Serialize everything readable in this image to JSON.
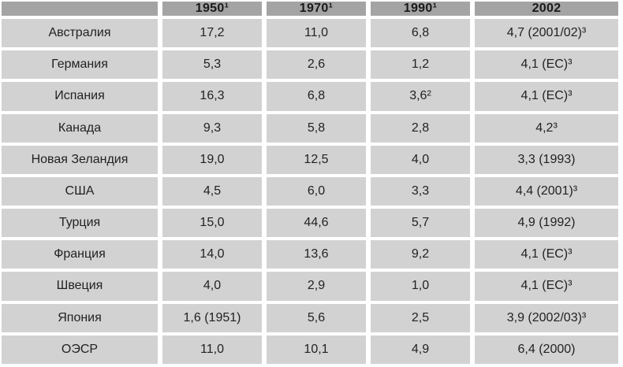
{
  "chart_data": {
    "type": "table",
    "title": "",
    "columns": [
      "",
      "1950¹",
      "1970¹",
      "1990¹",
      "2002"
    ],
    "rows": [
      {
        "label": "Австралия",
        "values": [
          "17,2",
          "11,0",
          "6,8",
          "4,7 (2001/02)³"
        ]
      },
      {
        "label": "Германия",
        "values": [
          "5,3",
          "2,6",
          "1,2",
          "4,1 (ЕС)³"
        ]
      },
      {
        "label": "Испания",
        "values": [
          "16,3",
          "6,8",
          "3,6²",
          "4,1 (ЕС)³"
        ]
      },
      {
        "label": "Канада",
        "values": [
          "9,3",
          "5,8",
          "2,8",
          "4,2³"
        ]
      },
      {
        "label": "Новая Зеландия",
        "values": [
          "19,0",
          "12,5",
          "4,0",
          "3,3 (1993)"
        ]
      },
      {
        "label": "США",
        "values": [
          "4,5",
          "6,0",
          "3,3",
          "4,4 (2001)³"
        ]
      },
      {
        "label": "Турция",
        "values": [
          "15,0",
          "44,6",
          "5,7",
          "4,9 (1992)"
        ]
      },
      {
        "label": "Франция",
        "values": [
          "14,0",
          "13,6",
          "9,2",
          "4,1 (ЕС)³"
        ]
      },
      {
        "label": "Швеция",
        "values": [
          "4,0",
          "2,9",
          "1,0",
          "4,1 (ЕС)³"
        ]
      },
      {
        "label": "Япония",
        "values": [
          "1,6 (1951)",
          "5,6",
          "2,5",
          "3,9 (2002/03)³"
        ]
      },
      {
        "label": "ОЭСР",
        "values": [
          "11,0",
          "10,1",
          "4,9",
          "6,4 (2000)"
        ]
      }
    ],
    "layout": {
      "grid": "white gutters between gray cells",
      "header_position": "top row",
      "decimal_separator": ","
    },
    "colors": {
      "header_bg": "#a4a4a4",
      "cell_bg": "#d2d2d2",
      "gutter": "#ffffff",
      "text": "#222222"
    }
  }
}
